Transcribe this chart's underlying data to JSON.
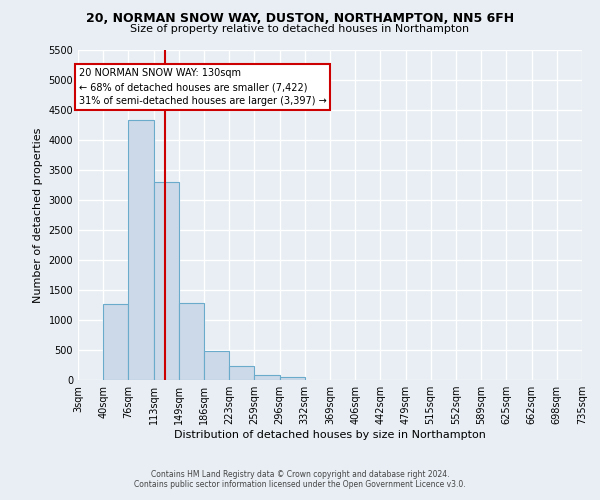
{
  "title": "20, NORMAN SNOW WAY, DUSTON, NORTHAMPTON, NN5 6FH",
  "subtitle": "Size of property relative to detached houses in Northampton",
  "xlabel": "Distribution of detached houses by size in Northampton",
  "ylabel": "Number of detached properties",
  "bin_edges": [
    3,
    40,
    76,
    113,
    149,
    186,
    223,
    259,
    296,
    332,
    369,
    406,
    442,
    479,
    515,
    552,
    589,
    625,
    662,
    698,
    735
  ],
  "bar_heights": [
    0,
    1270,
    4330,
    3300,
    1280,
    480,
    230,
    90,
    50,
    0,
    0,
    0,
    0,
    0,
    0,
    0,
    0,
    0,
    0,
    0
  ],
  "bar_color": "#ccd9e8",
  "bar_edge_color": "#6aabcc",
  "property_size": 130,
  "vline_color": "#cc0000",
  "ylim": [
    0,
    5500
  ],
  "yticks": [
    0,
    500,
    1000,
    1500,
    2000,
    2500,
    3000,
    3500,
    4000,
    4500,
    5000,
    5500
  ],
  "annotation_title": "20 NORMAN SNOW WAY: 130sqm",
  "annotation_line1": "← 68% of detached houses are smaller (7,422)",
  "annotation_line2": "31% of semi-detached houses are larger (3,397) →",
  "annotation_box_color": "#ffffff",
  "annotation_box_edge": "#cc0000",
  "footer1": "Contains HM Land Registry data © Crown copyright and database right 2024.",
  "footer2": "Contains public sector information licensed under the Open Government Licence v3.0.",
  "background_color": "#e8eef4",
  "plot_bg_color": "#e8eef4",
  "grid_color": "#ffffff",
  "tick_labels": [
    "3sqm",
    "40sqm",
    "76sqm",
    "113sqm",
    "149sqm",
    "186sqm",
    "223sqm",
    "259sqm",
    "296sqm",
    "332sqm",
    "369sqm",
    "406sqm",
    "442sqm",
    "479sqm",
    "515sqm",
    "552sqm",
    "589sqm",
    "625sqm",
    "662sqm",
    "698sqm",
    "735sqm"
  ]
}
